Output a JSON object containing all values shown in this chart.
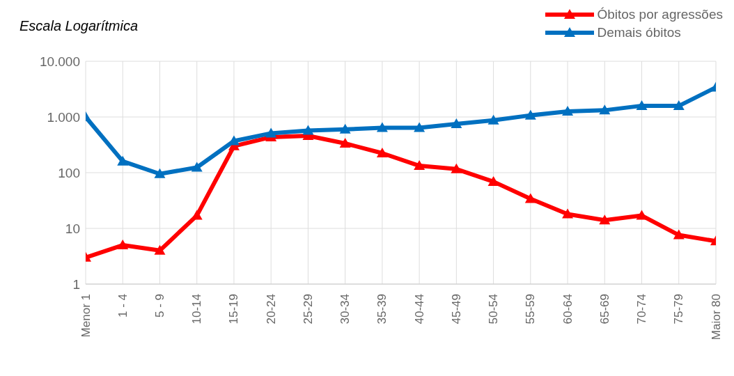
{
  "chart_data": {
    "type": "line",
    "title": "Escala Logarítmica",
    "categories": [
      "Menor 1",
      "1 - 4",
      "5 - 9",
      "10-14",
      "15-19",
      "20-24",
      "25-29",
      "30-34",
      "35-39",
      "40-44",
      "45-49",
      "50-54",
      "55-59",
      "60-64",
      "65-69",
      "70-74",
      "75-79",
      "Maior 80"
    ],
    "series": [
      {
        "name": "Óbitos por agressões",
        "color": "#ff0000",
        "values": [
          3,
          5,
          4,
          17,
          300,
          435,
          460,
          335,
          224,
          133,
          116,
          69,
          34,
          18,
          14,
          17,
          7.6,
          5.9
        ]
      },
      {
        "name": "Demais óbitos",
        "color": "#0070c0",
        "values": [
          1000,
          160,
          95,
          124,
          370,
          510,
          570,
          600,
          640,
          640,
          750,
          870,
          1070,
          1260,
          1320,
          1590,
          1580,
          3400
        ]
      }
    ],
    "log": true,
    "ylim": [
      1,
      10000
    ],
    "yticks": [
      1,
      10,
      100,
      {
        "value": 1000,
        "label": "1.000"
      },
      {
        "value": 10000,
        "label": "10.000"
      }
    ],
    "grid": true,
    "legend": "top right",
    "marker": "triangle",
    "line_style": "solid"
  }
}
